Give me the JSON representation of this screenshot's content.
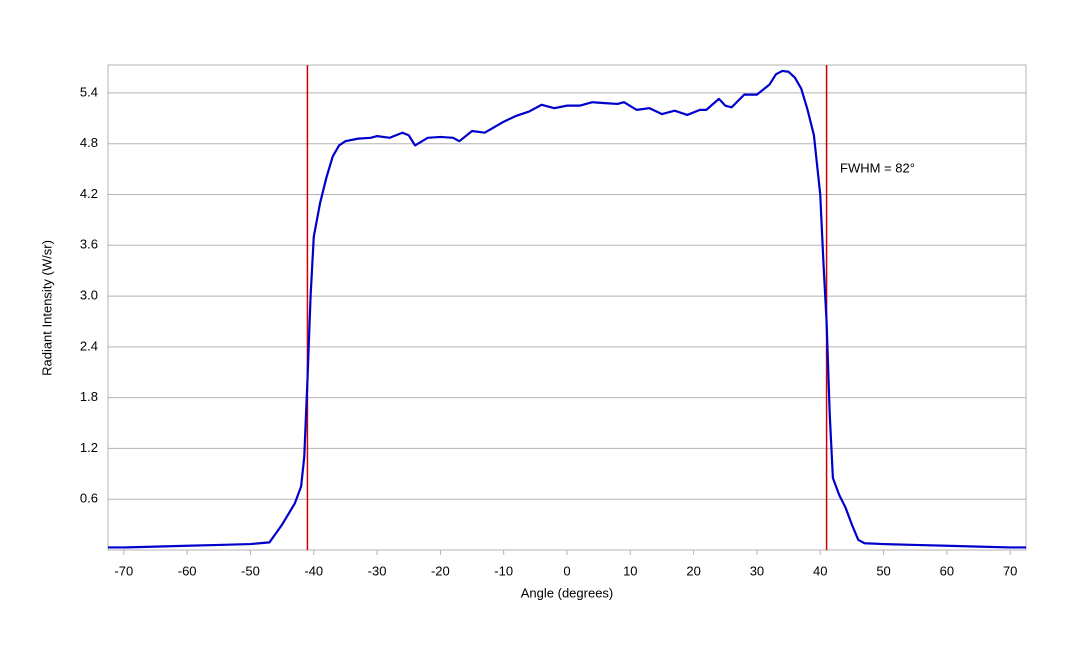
{
  "chart_data": {
    "type": "line",
    "x_label": "Angle (degrees)",
    "y_label": "Radiant Intensity (W/sr)",
    "annotation": "FWHM = 82°",
    "xlim": [
      -72.5,
      72.5
    ],
    "ylim": [
      0,
      5.73
    ],
    "xticks": [
      -70,
      -60,
      -50,
      -40,
      -30,
      -20,
      -10,
      0,
      10,
      20,
      30,
      40,
      50,
      60,
      70
    ],
    "yticks": [
      0.6,
      1.2,
      1.8,
      2.4,
      {
        "value": 3,
        "label": "3.0"
      },
      3.6,
      4.2,
      4.8,
      5.4
    ],
    "grid": true,
    "markers": {
      "color": "#cc0000",
      "x": [
        -41,
        41
      ]
    },
    "series": [
      {
        "color": "#0000cc",
        "x": [
          -72.5,
          -70,
          -65,
          -60,
          -55,
          -50,
          -47,
          -45,
          -43,
          -42,
          -41.5,
          -41,
          -40.5,
          -40,
          -39,
          -38,
          -37,
          -36,
          -35,
          -33,
          -31,
          -30,
          -28,
          -26,
          -25,
          -24,
          -22,
          -20,
          -18,
          -17,
          -15,
          -13,
          -10,
          -8,
          -6,
          -4,
          -2,
          0,
          2,
          4,
          6,
          8,
          9,
          11,
          13,
          15,
          17,
          19,
          21,
          22,
          24,
          25,
          26,
          28,
          30,
          32,
          33,
          34,
          35,
          36,
          37,
          38,
          39,
          40,
          40.5,
          41,
          41.5,
          42,
          43,
          44,
          45,
          46,
          47,
          50,
          55,
          60,
          65,
          70,
          72.5
        ],
        "values": [
          0.03,
          0.03,
          0.04,
          0.05,
          0.06,
          0.07,
          0.09,
          0.3,
          0.55,
          0.75,
          1.1,
          2.0,
          3.0,
          3.7,
          4.1,
          4.4,
          4.65,
          4.78,
          4.83,
          4.86,
          4.87,
          4.89,
          4.87,
          4.93,
          4.9,
          4.78,
          4.87,
          4.88,
          4.87,
          4.83,
          4.95,
          4.93,
          5.06,
          5.13,
          5.18,
          5.26,
          5.22,
          5.25,
          5.25,
          5.29,
          5.28,
          5.27,
          5.29,
          5.2,
          5.22,
          5.15,
          5.19,
          5.14,
          5.2,
          5.2,
          5.33,
          5.25,
          5.23,
          5.38,
          5.38,
          5.5,
          5.62,
          5.66,
          5.65,
          5.58,
          5.45,
          5.2,
          4.9,
          4.2,
          3.4,
          2.7,
          1.6,
          0.85,
          0.65,
          0.5,
          0.3,
          0.12,
          0.08,
          0.07,
          0.06,
          0.05,
          0.04,
          0.03,
          0.03
        ]
      }
    ]
  }
}
